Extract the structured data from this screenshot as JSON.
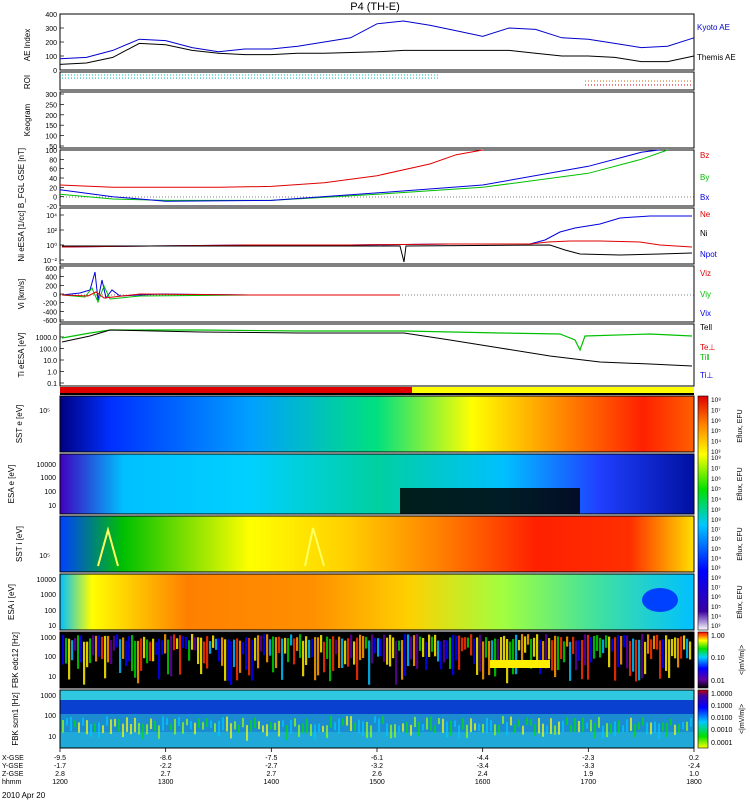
{
  "title": "P4 (TH-E)",
  "date_label": "2010 Apr 20",
  "colors": {
    "kyoto": "#0000cc",
    "themis": "#000000",
    "red": "#e00000",
    "green": "#00c000",
    "blue": "#0000e0",
    "cyan": "#00cccc",
    "orange": "#cc6600"
  },
  "chart_data": [
    {
      "type": "line",
      "panel": "ae-index",
      "ylabel": "AE Index",
      "ylim": [
        0,
        400
      ],
      "yticks": [
        "400",
        "300",
        "200",
        "100",
        "0"
      ],
      "series": [
        {
          "name": "Kyoto AE",
          "x": [
            1200,
            1215,
            1230,
            1245,
            1300,
            1315,
            1330,
            1345,
            1400,
            1415,
            1430,
            1445,
            1500,
            1515,
            1530,
            1545,
            1600,
            1615,
            1630,
            1645,
            1700,
            1715,
            1730,
            1745,
            1800
          ],
          "values": [
            80,
            90,
            140,
            220,
            210,
            160,
            130,
            150,
            150,
            170,
            200,
            230,
            330,
            350,
            320,
            280,
            240,
            300,
            290,
            230,
            220,
            190,
            160,
            170,
            230
          ]
        },
        {
          "name": "Themis AE",
          "x": [
            1200,
            1215,
            1230,
            1245,
            1300,
            1315,
            1330,
            1345,
            1400,
            1415,
            1430,
            1445,
            1500,
            1515,
            1530,
            1545,
            1600,
            1615,
            1630,
            1645,
            1700,
            1715,
            1730,
            1745,
            1800
          ],
          "values": [
            40,
            50,
            90,
            190,
            180,
            140,
            120,
            110,
            110,
            120,
            120,
            125,
            130,
            140,
            140,
            140,
            140,
            140,
            120,
            100,
            100,
            90,
            60,
            60,
            100
          ]
        }
      ]
    },
    {
      "type": "line",
      "panel": "roi",
      "ylabel": "ROI"
    },
    {
      "type": "line",
      "panel": "keogram",
      "ylabel": "Keogram",
      "ylim": [
        50,
        300
      ],
      "yticks": [
        "300",
        "250",
        "200",
        "150",
        "100",
        "50"
      ]
    },
    {
      "type": "line",
      "panel": "b-fgl",
      "ylabel": "B_FGL GSE [nT]",
      "ylim": [
        -20,
        100
      ],
      "yticks": [
        "100",
        "80",
        "60",
        "40",
        "20",
        "0",
        "-20"
      ],
      "series": [
        {
          "name": "Bz",
          "x": [
            1200,
            1230,
            1300,
            1330,
            1400,
            1430,
            1500,
            1530,
            1545,
            1600
          ],
          "values": [
            25,
            20,
            20,
            20,
            22,
            30,
            45,
            70,
            90,
            100
          ]
        },
        {
          "name": "By",
          "x": [
            1200,
            1230,
            1300,
            1400,
            1500,
            1600,
            1700,
            1730,
            1745
          ],
          "values": [
            5,
            -5,
            -8,
            -8,
            5,
            20,
            50,
            80,
            100
          ]
        },
        {
          "name": "Bx",
          "x": [
            1200,
            1230,
            1300,
            1400,
            1500,
            1600,
            1700,
            1730,
            1740
          ],
          "values": [
            15,
            0,
            -10,
            -8,
            8,
            25,
            65,
            95,
            100
          ]
        }
      ]
    },
    {
      "type": "line",
      "panel": "density",
      "ylabel": "Ni eESA [1/cc]",
      "ylim": [
        -2,
        4
      ],
      "yticks": [
        "10⁴",
        "10²",
        "10⁰",
        "10⁻²"
      ],
      "legend": [
        "Ne",
        "Ni",
        "Npot"
      ]
    },
    {
      "type": "line",
      "panel": "velocity",
      "ylabel": "Vi [km/s]",
      "ylim": [
        -600,
        600
      ],
      "yticks": [
        "600",
        "400",
        "200",
        "0",
        "-200",
        "-400",
        "-600"
      ],
      "legend": [
        "Viz",
        "Viy",
        "Vix"
      ]
    },
    {
      "type": "line",
      "panel": "temperature",
      "ylabel": "Ti eESA [eV]",
      "ylim": [
        0.1,
        1000
      ],
      "yticks": [
        "1000.0",
        "100.0",
        "10.0",
        "1.0",
        "0.1"
      ],
      "legend": [
        "Tell",
        "Te⊥",
        "Ti‖",
        "Ti⊥"
      ]
    },
    {
      "type": "heatmap",
      "panel": "sst-e",
      "ylabel": "SST e [eV]",
      "yticks": [
        "10⁵"
      ],
      "colorbar_label": "Eflux, EFU"
    },
    {
      "type": "heatmap",
      "panel": "esa-e",
      "ylabel": "ESA e [eV]",
      "yticks": [
        "10000",
        "1000",
        "100",
        "10"
      ],
      "colorbar_label": "Eflux, EFU"
    },
    {
      "type": "heatmap",
      "panel": "sst-i",
      "ylabel": "SST i [eV]",
      "yticks": [
        "10⁵"
      ],
      "colorbar_label": "Eflux, EFU"
    },
    {
      "type": "heatmap",
      "panel": "esa-i",
      "ylabel": "ESA i [eV]",
      "yticks": [
        "10000",
        "1000",
        "100",
        "10"
      ],
      "colorbar_label": "Eflux, EFU"
    },
    {
      "type": "heatmap",
      "panel": "fbk-edc",
      "ylabel": "FBK edc12 [Hz]",
      "yticks": [
        "1000",
        "100",
        "10"
      ],
      "colorbar_label": "<|mV/m|>",
      "colorbar_ticks": [
        "1.00",
        "0.10",
        "0.01"
      ]
    },
    {
      "type": "heatmap",
      "panel": "fbk-scm",
      "ylabel": "FBK scm1 [Hz]",
      "yticks": [
        "1000",
        "100",
        "10"
      ],
      "colorbar_label": "<|mV/m|>",
      "colorbar_ticks": [
        "1.0000",
        "0.1000",
        "0.0100",
        "0.0010",
        "0.0001"
      ]
    }
  ],
  "legends": {
    "ae": [
      "Kyoto AE",
      "Themis AE"
    ],
    "b": [
      "Bz",
      "By",
      "Bx"
    ],
    "n": [
      "Ne",
      "Ni",
      "Npot"
    ],
    "v": [
      "Viz",
      "Viy",
      "Vix"
    ],
    "t": [
      "Tell",
      "Te⊥",
      "Ti‖",
      "Ti⊥"
    ]
  },
  "eflux_ticks": [
    "10⁸",
    "10⁷",
    "10⁶",
    "10⁵",
    "10⁴",
    "10³"
  ],
  "xaxis": {
    "row_labels": [
      "X-GSE",
      "Y-GSE",
      "Z-GSE",
      "hhmm"
    ],
    "columns": [
      {
        "x": "-9.5",
        "y": "-1.7",
        "z": "2.8",
        "hhmm": "1200"
      },
      {
        "x": "-8.6",
        "y": "-2.2",
        "z": "2.7",
        "hhmm": "1300"
      },
      {
        "x": "-7.5",
        "y": "-2.7",
        "z": "2.7",
        "hhmm": "1400"
      },
      {
        "x": "-6.1",
        "y": "-3.2",
        "z": "2.6",
        "hhmm": "1500"
      },
      {
        "x": "-4.4",
        "y": "-3.4",
        "z": "2.4",
        "hhmm": "1600"
      },
      {
        "x": "-2.3",
        "y": "-3.3",
        "z": "1.9",
        "hhmm": "1700"
      },
      {
        "x": "0.2",
        "y": "-2.4",
        "z": "1.0",
        "hhmm": "1800"
      }
    ]
  }
}
